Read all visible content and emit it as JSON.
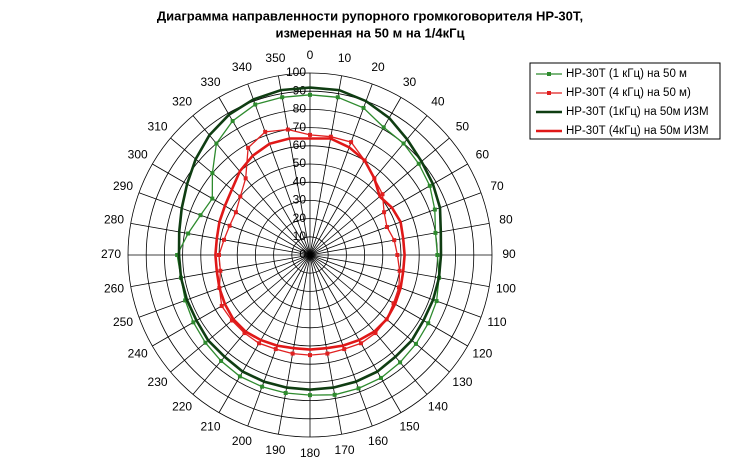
{
  "chart_data": {
    "type": "radar",
    "title": "Диаграмма направленности рупорного громкоговорителя НР-30Т,",
    "subtitle": "измеренная на 50 м на 1/4кГц",
    "categories": [
      0,
      10,
      20,
      30,
      40,
      50,
      60,
      70,
      80,
      90,
      100,
      110,
      120,
      130,
      140,
      150,
      160,
      170,
      180,
      190,
      200,
      210,
      220,
      230,
      240,
      250,
      260,
      270,
      280,
      290,
      300,
      310,
      320,
      330,
      340,
      350
    ],
    "rlim": [
      0,
      100
    ],
    "rticks": [
      0,
      10,
      20,
      30,
      40,
      50,
      60,
      70,
      80,
      90,
      100
    ],
    "grid": true,
    "legend": "upper right",
    "series": [
      {
        "name": "НР-30Т (1 кГц) на 50 м",
        "color": "#2e8b2e",
        "width": 1.3,
        "markers": true,
        "values": [
          88,
          88,
          86,
          81,
          80,
          78,
          76,
          73,
          70,
          70,
          72,
          74,
          75,
          76,
          77,
          78,
          78,
          78,
          77,
          77,
          77,
          77,
          76,
          75,
          74,
          73,
          72,
          73,
          68,
          64,
          62,
          70,
          80,
          85,
          88,
          88
        ]
      },
      {
        "name": "НР-30Т (4 кГц) на 50 м)",
        "color": "#e02020",
        "width": 1.3,
        "markers": true,
        "values": [
          66,
          66,
          66,
          60,
          55,
          52,
          47,
          45,
          47,
          48,
          50,
          52,
          53,
          55,
          56,
          56,
          55,
          55,
          55,
          55,
          55,
          56,
          56,
          56,
          56,
          53,
          50,
          50,
          48,
          47,
          47,
          50,
          55,
          68,
          72,
          70
        ]
      },
      {
        "name": "НР-30Т (1кГц) на 50м ИЗМ",
        "color": "#0f3d12",
        "width": 2.6,
        "markers": false,
        "values": [
          92,
          92,
          90,
          87,
          83,
          80,
          78,
          76,
          73,
          72,
          72,
          72,
          72,
          73,
          73,
          74,
          74,
          74,
          74,
          74,
          74,
          74,
          73,
          73,
          72,
          72,
          72,
          72,
          73,
          75,
          78,
          82,
          86,
          89,
          91,
          92
        ]
      },
      {
        "name": "НР-30Т (4кГц) на 50м ИЗМ",
        "color": "#e01818",
        "width": 2.6,
        "markers": false,
        "values": [
          64,
          65,
          63,
          60,
          55,
          50,
          52,
          53,
          52,
          52,
          52,
          53,
          54,
          55,
          55,
          54,
          53,
          52,
          52,
          52,
          53,
          54,
          55,
          55,
          54,
          53,
          52,
          52,
          52,
          53,
          54,
          56,
          60,
          63,
          65,
          65
        ]
      }
    ]
  }
}
